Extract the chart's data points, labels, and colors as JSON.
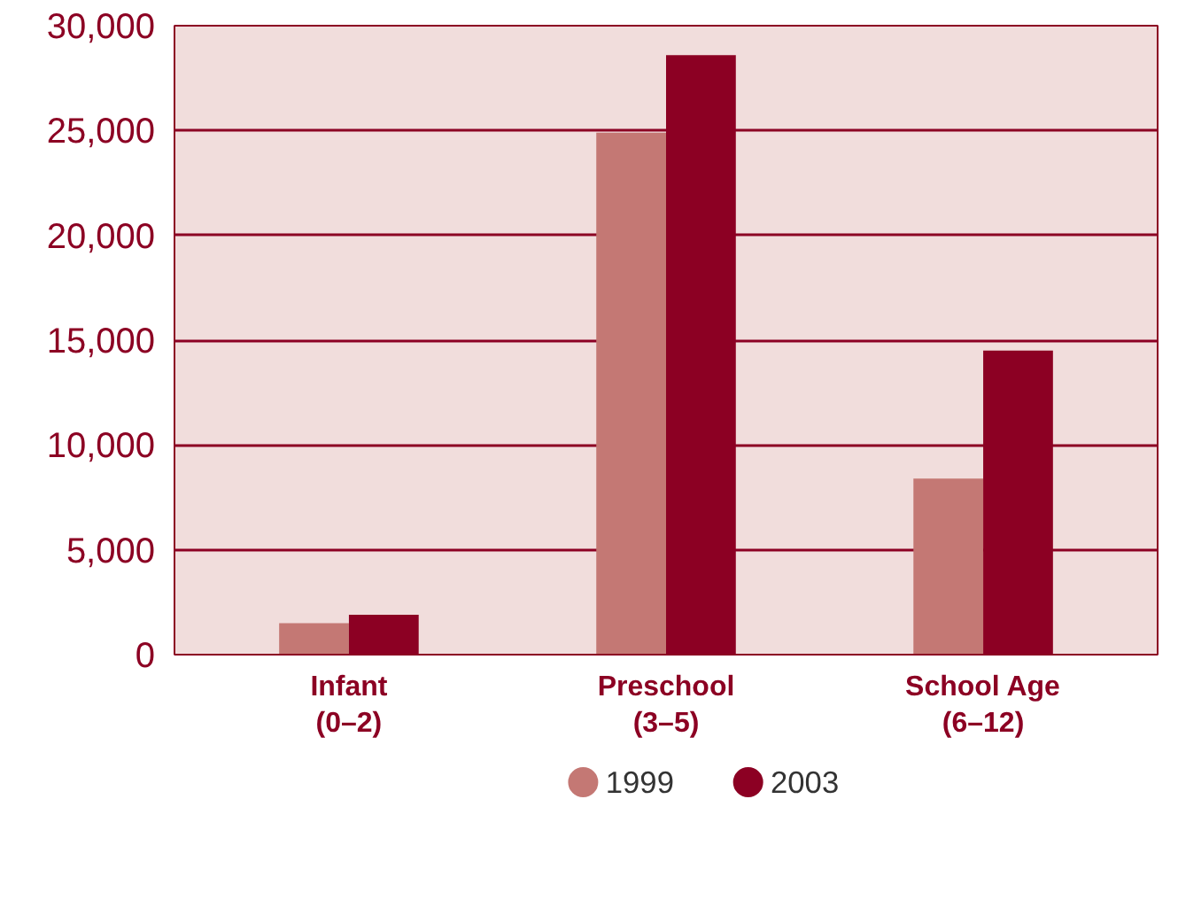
{
  "chart_data": {
    "type": "bar",
    "categories": [
      "Infant\n(0–2)",
      "Preschool\n(3–5)",
      "School Age\n(6–12)"
    ],
    "series": [
      {
        "name": "1999",
        "color": "#c47874",
        "values": [
          1500,
          24900,
          8400
        ]
      },
      {
        "name": "2003",
        "color": "#8c0023",
        "values": [
          1900,
          28600,
          14500
        ]
      }
    ],
    "ylim": [
      0,
      30000
    ],
    "yticks": [
      {
        "value": 0,
        "label": "0"
      },
      {
        "value": 5000,
        "label": "5,000"
      },
      {
        "value": 10000,
        "label": "10,000"
      },
      {
        "value": 15000,
        "label": "15,000"
      },
      {
        "value": 20000,
        "label": "20,000"
      },
      {
        "value": 25000,
        "label": "25,000"
      },
      {
        "value": 30000,
        "label": "30,000"
      }
    ],
    "grid": "y",
    "legend": "bottom"
  }
}
